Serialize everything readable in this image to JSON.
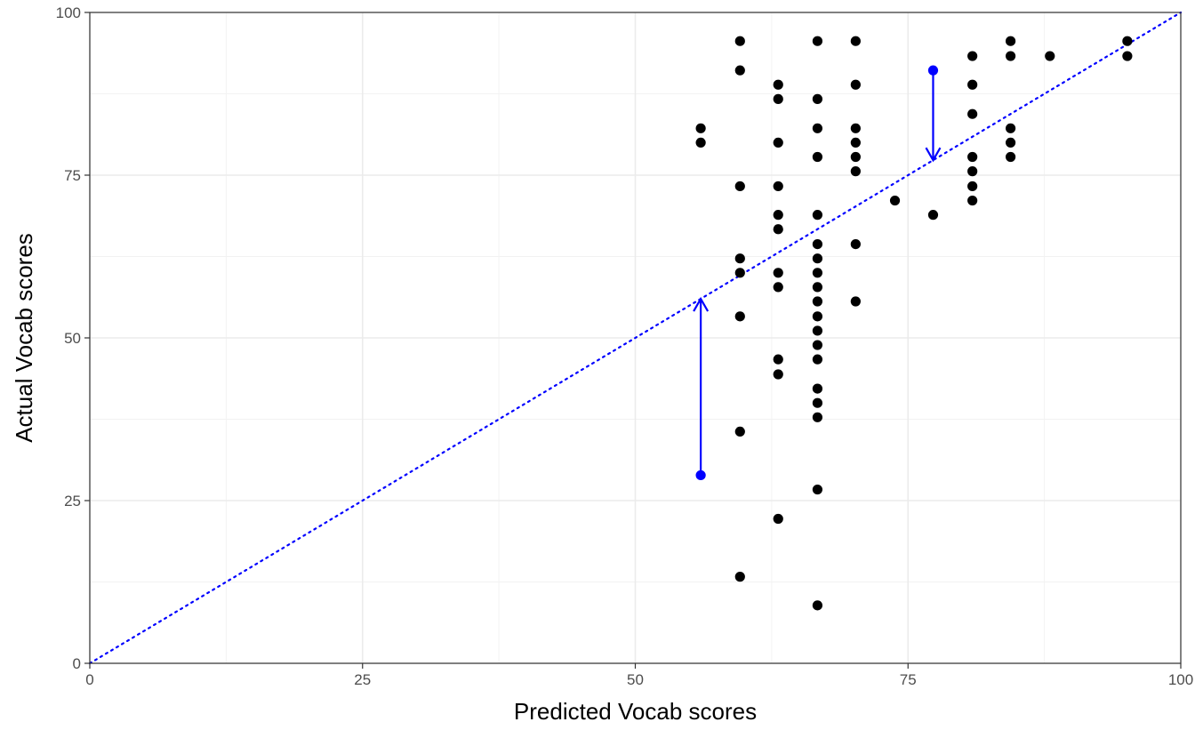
{
  "chart_data": {
    "type": "scatter",
    "title": "",
    "xlabel": "Predicted Vocab scores",
    "ylabel": "Actual Vocab scores",
    "xlim": [
      0,
      100
    ],
    "ylim": [
      0,
      100
    ],
    "x_ticks": [
      0,
      25,
      50,
      75,
      100
    ],
    "y_ticks": [
      0,
      25,
      50,
      75,
      100
    ],
    "x_tick_labels": [
      "0",
      "25",
      "50",
      "75",
      "100"
    ],
    "y_tick_labels": [
      "0",
      "25",
      "50",
      "75",
      "100"
    ],
    "grid": true,
    "legend": "none",
    "point_color": "#000000",
    "highlight_color": "#0000ff",
    "reference_line": {
      "slope": 1,
      "intercept": 0,
      "style": "dotted",
      "color": "#0000ff"
    },
    "points": [
      {
        "x": 56.0,
        "y": 82.2
      },
      {
        "x": 56.0,
        "y": 80.0
      },
      {
        "x": 59.6,
        "y": 95.6
      },
      {
        "x": 59.6,
        "y": 91.1
      },
      {
        "x": 59.6,
        "y": 73.3
      },
      {
        "x": 59.6,
        "y": 62.2
      },
      {
        "x": 59.6,
        "y": 60.0
      },
      {
        "x": 59.6,
        "y": 53.3
      },
      {
        "x": 59.6,
        "y": 35.6
      },
      {
        "x": 59.6,
        "y": 13.3
      },
      {
        "x": 63.1,
        "y": 88.9
      },
      {
        "x": 63.1,
        "y": 86.7
      },
      {
        "x": 63.1,
        "y": 80.0
      },
      {
        "x": 63.1,
        "y": 73.3
      },
      {
        "x": 63.1,
        "y": 68.9
      },
      {
        "x": 63.1,
        "y": 66.7
      },
      {
        "x": 63.1,
        "y": 60.0
      },
      {
        "x": 63.1,
        "y": 57.8
      },
      {
        "x": 63.1,
        "y": 46.7
      },
      {
        "x": 63.1,
        "y": 44.4
      },
      {
        "x": 63.1,
        "y": 22.2
      },
      {
        "x": 66.7,
        "y": 95.6
      },
      {
        "x": 66.7,
        "y": 86.7
      },
      {
        "x": 66.7,
        "y": 82.2
      },
      {
        "x": 66.7,
        "y": 77.8
      },
      {
        "x": 66.7,
        "y": 68.9
      },
      {
        "x": 66.7,
        "y": 64.4
      },
      {
        "x": 66.7,
        "y": 62.2
      },
      {
        "x": 66.7,
        "y": 60.0
      },
      {
        "x": 66.7,
        "y": 57.8
      },
      {
        "x": 66.7,
        "y": 55.6
      },
      {
        "x": 66.7,
        "y": 53.3
      },
      {
        "x": 66.7,
        "y": 51.1
      },
      {
        "x": 66.7,
        "y": 48.9
      },
      {
        "x": 66.7,
        "y": 46.7
      },
      {
        "x": 66.7,
        "y": 42.2
      },
      {
        "x": 66.7,
        "y": 40.0
      },
      {
        "x": 66.7,
        "y": 37.8
      },
      {
        "x": 66.7,
        "y": 26.7
      },
      {
        "x": 66.7,
        "y": 8.9
      },
      {
        "x": 70.2,
        "y": 95.6
      },
      {
        "x": 70.2,
        "y": 88.9
      },
      {
        "x": 70.2,
        "y": 82.2
      },
      {
        "x": 70.2,
        "y": 80.0
      },
      {
        "x": 70.2,
        "y": 77.8
      },
      {
        "x": 70.2,
        "y": 75.6
      },
      {
        "x": 70.2,
        "y": 64.4
      },
      {
        "x": 70.2,
        "y": 55.6
      },
      {
        "x": 73.8,
        "y": 71.1
      },
      {
        "x": 77.3,
        "y": 68.9
      },
      {
        "x": 80.9,
        "y": 93.3
      },
      {
        "x": 80.9,
        "y": 88.9
      },
      {
        "x": 80.9,
        "y": 84.4
      },
      {
        "x": 80.9,
        "y": 77.8
      },
      {
        "x": 80.9,
        "y": 75.6
      },
      {
        "x": 80.9,
        "y": 73.3
      },
      {
        "x": 80.9,
        "y": 71.1
      },
      {
        "x": 84.4,
        "y": 95.6
      },
      {
        "x": 84.4,
        "y": 93.3
      },
      {
        "x": 84.4,
        "y": 82.2
      },
      {
        "x": 84.4,
        "y": 80.0
      },
      {
        "x": 84.4,
        "y": 77.8
      },
      {
        "x": 88.0,
        "y": 93.3
      },
      {
        "x": 95.1,
        "y": 95.6
      },
      {
        "x": 95.1,
        "y": 93.3
      }
    ],
    "highlighted": [
      {
        "x": 56.0,
        "y": 28.9,
        "arrow_to_y": 56.0
      },
      {
        "x": 77.3,
        "y": 91.1,
        "arrow_to_y": 77.3
      }
    ]
  }
}
